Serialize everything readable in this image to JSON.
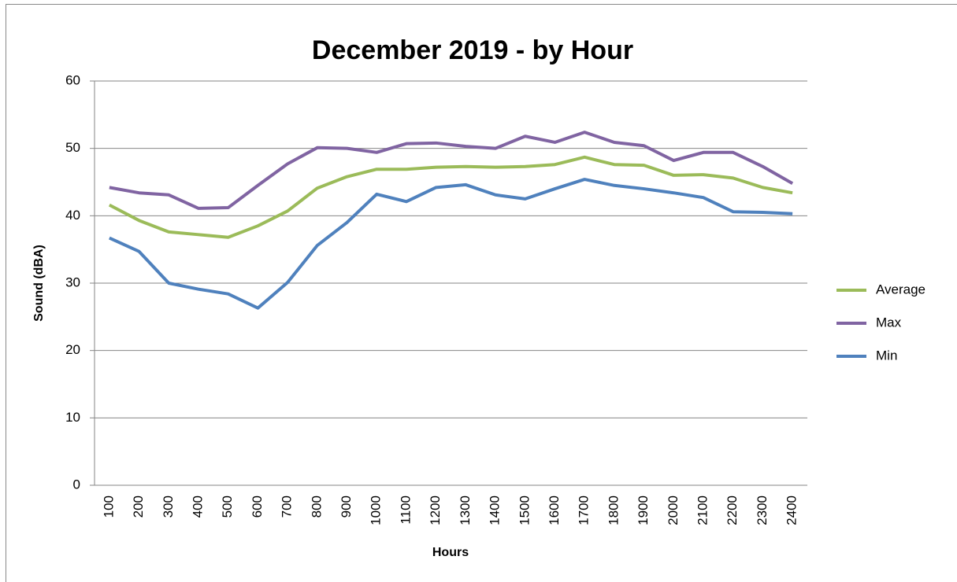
{
  "chart_data": {
    "type": "line",
    "title": "December 2019  - by Hour",
    "x_label": "Hours",
    "y_label": "Sound (dBA)",
    "categories": [
      "100",
      "200",
      "300",
      "400",
      "500",
      "600",
      "700",
      "800",
      "900",
      "1000",
      "1100",
      "1200",
      "1300",
      "1400",
      "1500",
      "1600",
      "1700",
      "1800",
      "1900",
      "2000",
      "2100",
      "2200",
      "2300",
      "2400"
    ],
    "series": [
      {
        "name": "Average",
        "color": "#9bbb59",
        "values": [
          41.6,
          39.3,
          37.6,
          37.2,
          36.8,
          38.5,
          40.7,
          44.1,
          45.8,
          46.9,
          46.9,
          47.2,
          47.3,
          47.2,
          47.3,
          47.6,
          48.7,
          47.6,
          47.5,
          46.0,
          46.1,
          45.6,
          44.2,
          43.4
        ]
      },
      {
        "name": "Max",
        "color": "#8064a2",
        "values": [
          44.2,
          43.4,
          43.1,
          41.1,
          41.2,
          44.5,
          47.7,
          50.1,
          50.0,
          49.4,
          50.7,
          50.8,
          50.3,
          50.0,
          51.8,
          50.9,
          52.4,
          50.9,
          50.4,
          48.2,
          49.4,
          49.4,
          47.3,
          44.8
        ]
      },
      {
        "name": "Min",
        "color": "#4f81bd",
        "values": [
          36.7,
          34.7,
          30.0,
          29.1,
          28.4,
          26.3,
          30.1,
          35.6,
          39.0,
          43.2,
          42.1,
          44.2,
          44.6,
          43.1,
          42.5,
          44.0,
          45.4,
          44.5,
          44.0,
          43.4,
          42.7,
          40.6,
          40.5,
          40.3
        ]
      }
    ],
    "ylim": [
      0,
      60
    ],
    "yticks": [
      0,
      10,
      20,
      30,
      40,
      50,
      60
    ],
    "grid": true,
    "legend": "right"
  }
}
